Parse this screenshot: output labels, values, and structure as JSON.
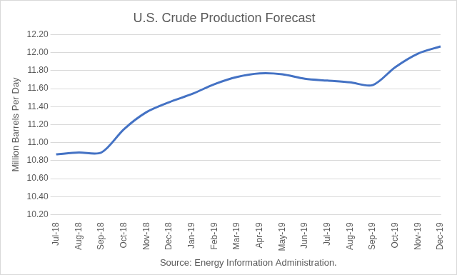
{
  "chart_data": {
    "type": "line",
    "title": "U.S. Crude Production Forecast",
    "y_label": "Million Barrels Per Day",
    "source": "Source: Energy Information Administration.",
    "categories": [
      "Jul-18",
      "Aug-18",
      "Sep-18",
      "Oct-18",
      "Nov-18",
      "Dec-18",
      "Jan-19",
      "Feb-19",
      "Mar-19",
      "Apr-19",
      "May-19",
      "Jun-19",
      "Jul-19",
      "Aug-19",
      "Sep-19",
      "Oct-19",
      "Nov-19",
      "Dec-19"
    ],
    "values": [
      10.87,
      10.89,
      10.89,
      11.15,
      11.34,
      11.45,
      11.54,
      11.65,
      11.73,
      11.77,
      11.76,
      11.71,
      11.69,
      11.67,
      11.64,
      11.84,
      11.99,
      12.07
    ],
    "color": "#4472c4",
    "ylim": [
      10.2,
      12.2
    ],
    "yticks": [
      {
        "value": 10.2,
        "label": "10.20"
      },
      {
        "value": 10.4,
        "label": "10.40"
      },
      {
        "value": 10.6,
        "label": "10.60"
      },
      {
        "value": 10.8,
        "label": "10.80"
      },
      {
        "value": 11.0,
        "label": "11.00"
      },
      {
        "value": 11.2,
        "label": "11.20"
      },
      {
        "value": 11.4,
        "label": "11.40"
      },
      {
        "value": 11.6,
        "label": "11.60"
      },
      {
        "value": 11.8,
        "label": "11.80"
      },
      {
        "value": 12.0,
        "label": "12.00"
      },
      {
        "value": 12.2,
        "label": "12.20"
      }
    ],
    "grid": true,
    "marker": "none"
  }
}
